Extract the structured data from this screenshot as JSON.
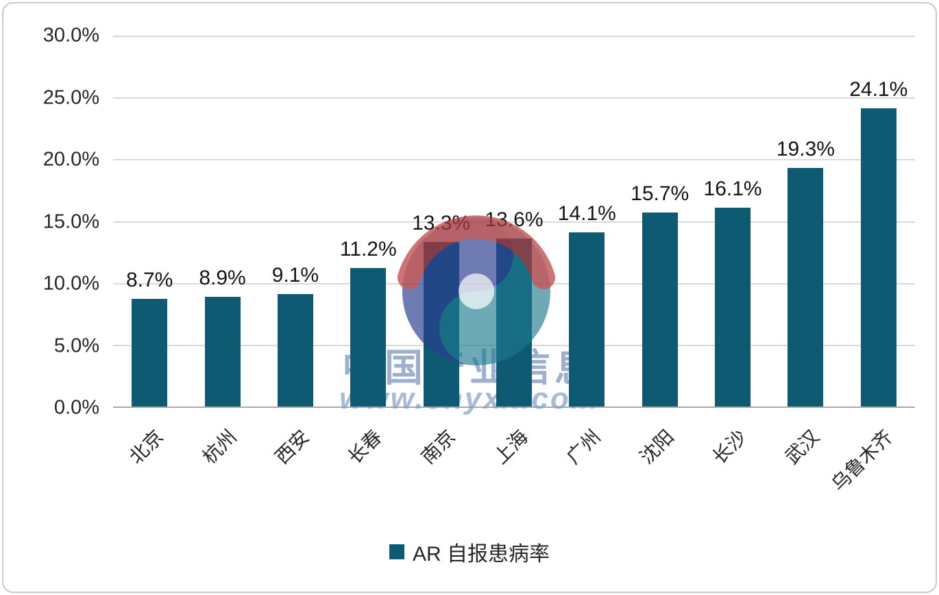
{
  "chart_data": {
    "type": "bar",
    "title": "",
    "categories": [
      "北京",
      "杭州",
      "西安",
      "长春",
      "南京",
      "上海",
      "广州",
      "沈阳",
      "长沙",
      "武汉",
      "乌鲁木齐"
    ],
    "values": [
      8.7,
      8.9,
      9.1,
      11.2,
      13.3,
      13.6,
      14.1,
      15.7,
      16.1,
      19.3,
      24.1
    ],
    "value_labels": [
      "8.7%",
      "8.9%",
      "9.1%",
      "11.2%",
      "13.3%",
      "13.6%",
      "14.1%",
      "15.7%",
      "16.1%",
      "19.3%",
      "24.1%"
    ],
    "xlabel": "",
    "ylabel": "",
    "ylim": [
      0,
      30
    ],
    "ytick_step": 5,
    "yticks": [
      "0.0%",
      "5.0%",
      "10.0%",
      "15.0%",
      "20.0%",
      "25.0%",
      "30.0%"
    ],
    "grid": true,
    "legend_position": "bottom",
    "legend": [
      {
        "label": "AR 自报患病率",
        "color": "#0f5a73"
      }
    ],
    "bar_color": "#0f5a73"
  },
  "watermark": {
    "text": "中国产业信息",
    "url": "www.chyxx.com"
  },
  "colors": {
    "bar": "#0f5a73",
    "gridline": "#d9d9d9",
    "axis_line": "#a8a8a8",
    "axis_text": "#262626",
    "watermark_text": "#7d96c2",
    "logo_red": "#b63434",
    "logo_navy": "#2b3e8f",
    "logo_teal": "#1d7b8f"
  }
}
